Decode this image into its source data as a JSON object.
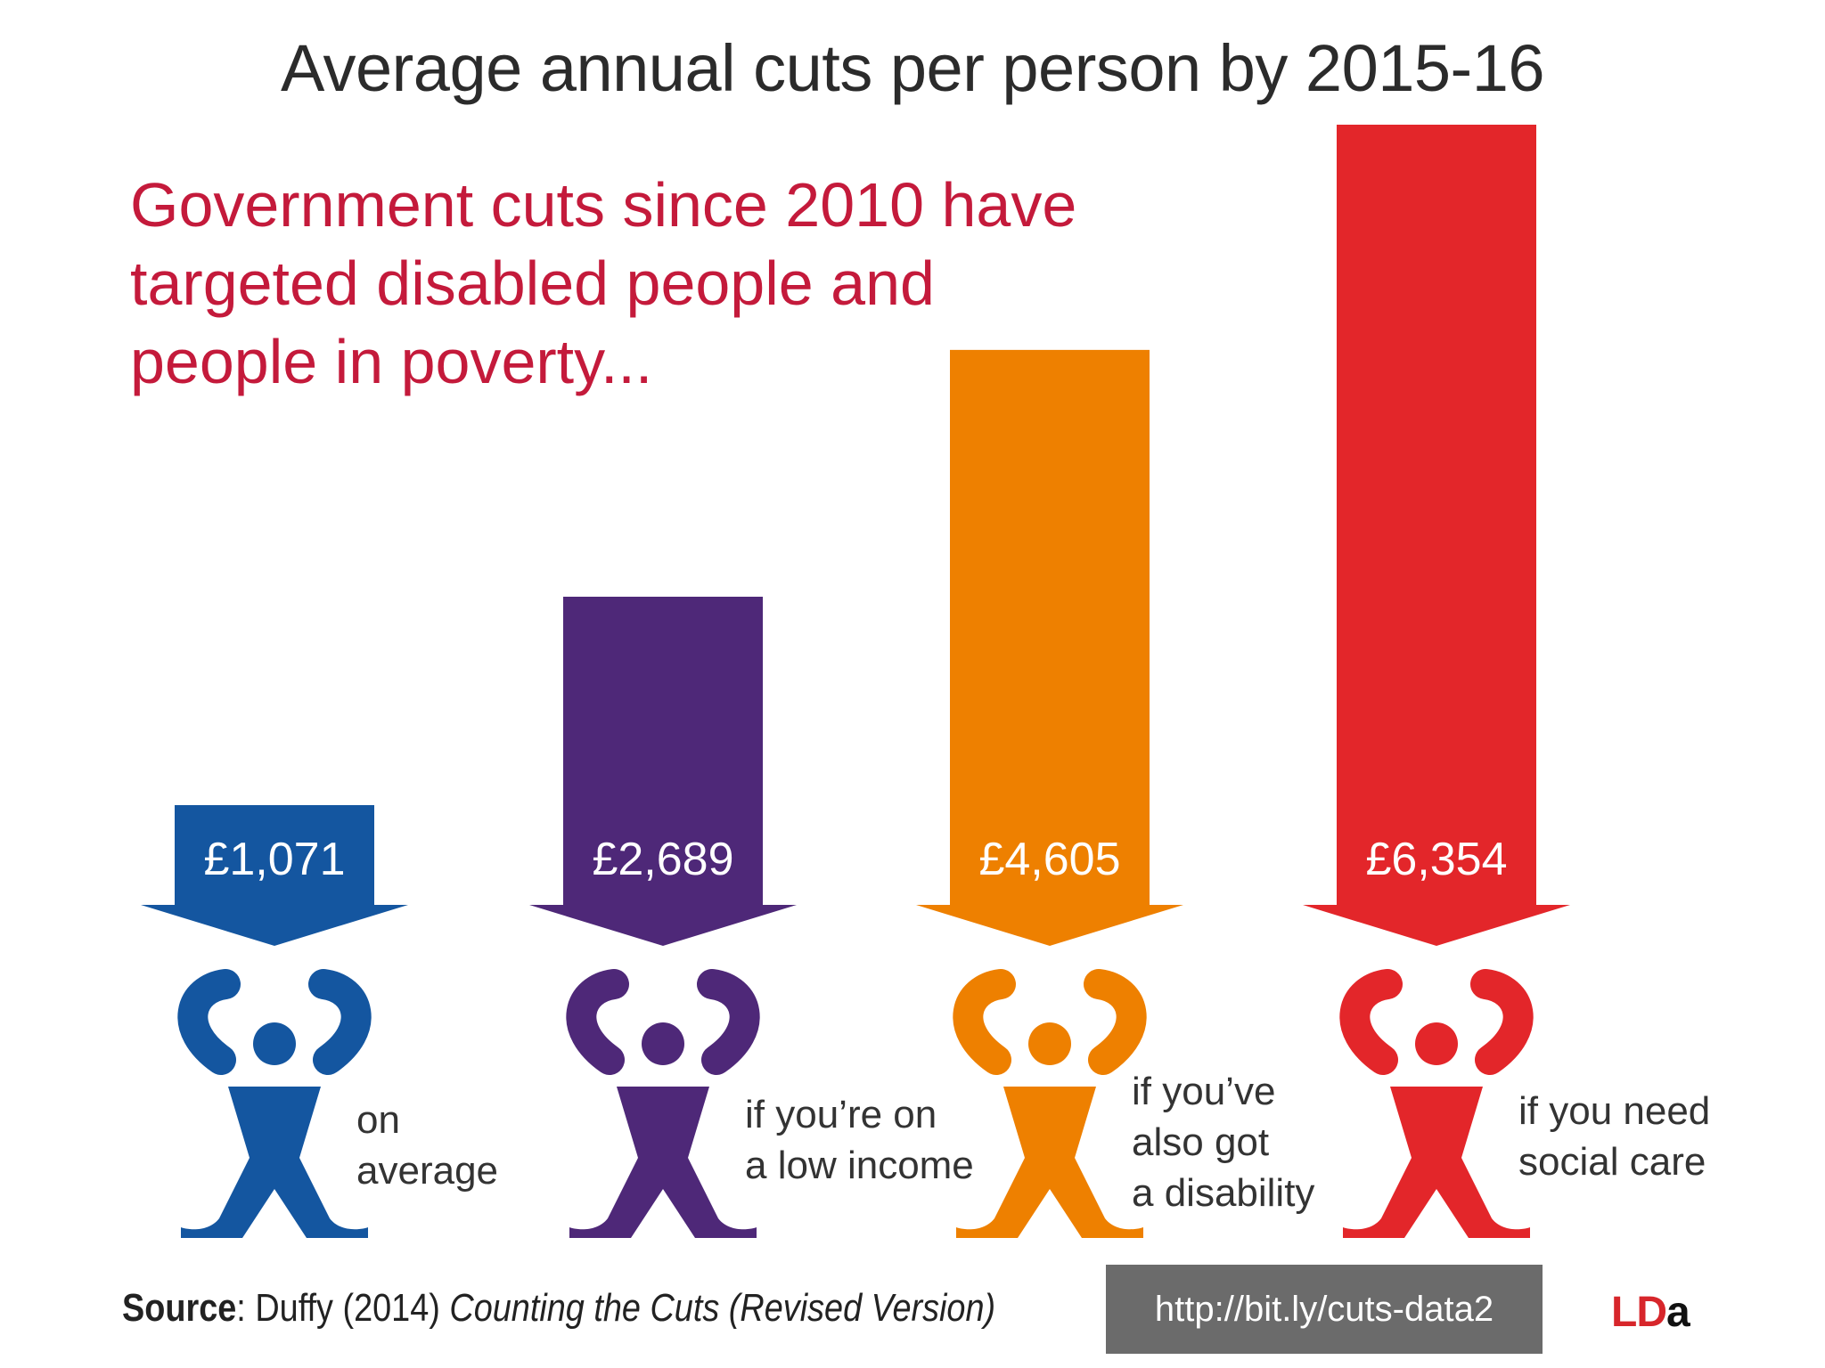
{
  "title": "Average annual cuts per person by 2015-16",
  "subtitle": "Government cuts since 2010 have\ntargeted disabled people and\npeople in poverty...",
  "chart_data": {
    "type": "bar",
    "title": "Average annual cuts per person by 2015-16",
    "categories": [
      "on average",
      "if you're on a low income",
      "if you've also got a disability",
      "if you need social care"
    ],
    "values": [
      1071,
      2689,
      4605,
      6354
    ],
    "value_labels": [
      "£1,071",
      "£2,689",
      "£4,605",
      "£6,354"
    ],
    "category_label_lines": [
      [
        "on",
        "average"
      ],
      [
        "if you’re on",
        "a low income"
      ],
      [
        "if you’ve",
        "also got",
        "a disability"
      ],
      [
        "if you need",
        "social care"
      ]
    ],
    "colors": [
      "#1456a0",
      "#4e2878",
      "#ee8000",
      "#e3262a"
    ],
    "unit": "£",
    "ylim": [
      0,
      6354
    ],
    "grid": false
  },
  "source": {
    "label": "Source",
    "sep": ":",
    "text": "Duffy (2014)",
    "work": "Counting the Cuts (Revised Version)"
  },
  "url": "http://bit.ly/cuts-data2",
  "logo": {
    "ld": "LD",
    "a": "a"
  }
}
